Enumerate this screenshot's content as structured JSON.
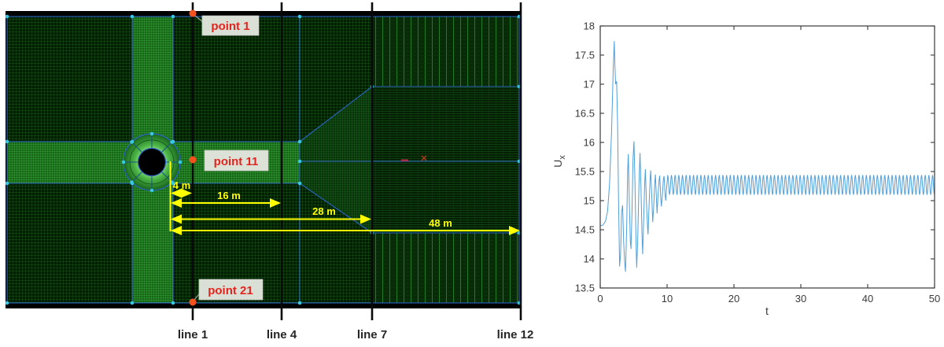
{
  "mesh": {
    "points": [
      {
        "label": "point 1"
      },
      {
        "label": "point 11"
      },
      {
        "label": "point 21"
      }
    ],
    "lines": [
      {
        "label": "line 1"
      },
      {
        "label": "line 4"
      },
      {
        "label": "line 7"
      },
      {
        "label": "line 12"
      }
    ],
    "distances": [
      {
        "label": "4 m"
      },
      {
        "label": "16 m"
      },
      {
        "label": "28 m"
      },
      {
        "label": "48 m"
      }
    ],
    "colors": {
      "mesh_dark_bg": "#041c04",
      "mesh_bright_bg": "#176617",
      "block_boundary_blue": "#2b63c4",
      "corner_dot_cyan": "#39c7e3",
      "probe_point_orange": "#f4511e",
      "annotation_yellow": "#ffff00",
      "point_label_red": "#e2251f",
      "label_box_bg": "#e3e7de"
    }
  },
  "chart_data": {
    "type": "line",
    "title": "",
    "xlabel": "t",
    "ylabel_main": "U",
    "ylabel_sub": "x",
    "xlim": [
      0,
      50
    ],
    "ylim": [
      13.5,
      18
    ],
    "xticks": [
      0,
      10,
      20,
      30,
      40,
      50
    ],
    "yticks": [
      13.5,
      14,
      14.5,
      15,
      15.5,
      16,
      16.5,
      17,
      17.5,
      18
    ],
    "grid": false,
    "legend": "none",
    "line_color": "#4f9fd9",
    "axis_color": "#3a3a3a",
    "series": [
      {
        "name": "Ux",
        "transient": [
          [
            0,
            14.57
          ],
          [
            0.4,
            14.58
          ],
          [
            0.8,
            14.65
          ],
          [
            1.1,
            14.82
          ],
          [
            1.4,
            15.3
          ],
          [
            1.7,
            16.2
          ],
          [
            1.95,
            17.3
          ],
          [
            2.1,
            17.74
          ],
          [
            2.2,
            17.3
          ],
          [
            2.3,
            17.0
          ],
          [
            2.45,
            17.05
          ],
          [
            2.6,
            16.3
          ],
          [
            2.75,
            14.9
          ],
          [
            2.9,
            13.87
          ],
          [
            3.05,
            14.1
          ],
          [
            3.2,
            14.8
          ],
          [
            3.35,
            14.92
          ],
          [
            3.5,
            14.3
          ],
          [
            3.65,
            13.95
          ],
          [
            3.78,
            13.78
          ],
          [
            3.95,
            14.5
          ],
          [
            4.1,
            15.5
          ],
          [
            4.2,
            15.8
          ],
          [
            4.35,
            15.0
          ],
          [
            4.5,
            14.3
          ],
          [
            4.6,
            14.17
          ],
          [
            4.75,
            14.8
          ],
          [
            4.9,
            15.7
          ],
          [
            5.05,
            16.02
          ],
          [
            5.2,
            15.3
          ],
          [
            5.35,
            14.3
          ],
          [
            5.45,
            13.85
          ],
          [
            5.6,
            14.3
          ],
          [
            5.8,
            15.3
          ],
          [
            5.95,
            15.82
          ],
          [
            6.1,
            15.2
          ],
          [
            6.25,
            14.4
          ],
          [
            6.35,
            14.08
          ],
          [
            6.5,
            14.7
          ],
          [
            6.65,
            15.3
          ],
          [
            6.75,
            15.54
          ],
          [
            6.9,
            15.0
          ],
          [
            7.05,
            14.6
          ],
          [
            7.15,
            14.42
          ],
          [
            7.3,
            14.9
          ],
          [
            7.45,
            15.35
          ],
          [
            7.55,
            15.52
          ],
          [
            7.7,
            15.1
          ],
          [
            7.85,
            14.63
          ],
          [
            8.0,
            14.9
          ],
          [
            8.15,
            15.3
          ],
          [
            8.25,
            15.45
          ],
          [
            8.4,
            15.05
          ],
          [
            8.5,
            14.78
          ],
          [
            8.65,
            15.1
          ],
          [
            8.8,
            15.35
          ],
          [
            8.9,
            15.43
          ],
          [
            9.05,
            15.05
          ],
          [
            9.15,
            14.9
          ],
          [
            9.3,
            15.1
          ],
          [
            9.45,
            15.38
          ],
          [
            9.55,
            15.42
          ],
          [
            9.7,
            15.1
          ],
          [
            9.8,
            15.0
          ],
          [
            9.95,
            15.25
          ],
          [
            10.1,
            15.44
          ]
        ],
        "steady_oscillation": {
          "t_start": 10.1,
          "t_end": 50,
          "mean": 15.27,
          "amplitude": 0.17,
          "period": 0.55
        }
      }
    ]
  }
}
